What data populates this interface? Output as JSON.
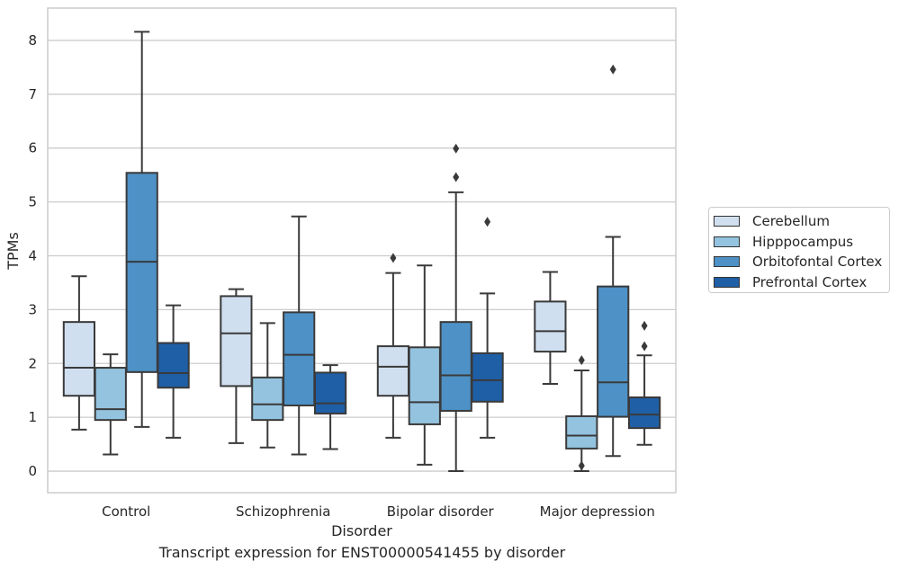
{
  "caption": "Transcript expression for ENST00000541455 by disorder",
  "colors": {
    "Cerebellum": "#d0dfef",
    "Hipppocampus": "#93c3df",
    "Orbitofontal Cortex": "#4d91c6",
    "Prefrontal Cortex": "#1f5fa6"
  },
  "chart_data": {
    "type": "box",
    "xlabel": "Disorder",
    "ylabel": "TPMs",
    "ylim": [
      -0.4,
      8.6
    ],
    "yticks": [
      0,
      1,
      2,
      3,
      4,
      5,
      6,
      7,
      8
    ],
    "categories": [
      "Control",
      "Schizophrenia",
      "Bipolar disorder",
      "Major depression"
    ],
    "grid": "horizontal",
    "legend_position": "right",
    "series": [
      {
        "name": "Cerebellum",
        "boxes": [
          {
            "whislo": 0.77,
            "q1": 1.4,
            "med": 1.92,
            "q3": 2.77,
            "whishi": 3.62,
            "fliers": []
          },
          {
            "whislo": 0.52,
            "q1": 1.58,
            "med": 2.56,
            "q3": 3.25,
            "whishi": 3.38,
            "fliers": []
          },
          {
            "whislo": 0.62,
            "q1": 1.4,
            "med": 1.94,
            "q3": 2.32,
            "whishi": 3.68,
            "fliers": [
              3.96
            ]
          },
          {
            "whislo": 1.62,
            "q1": 2.22,
            "med": 2.6,
            "q3": 3.15,
            "whishi": 3.7,
            "fliers": []
          }
        ]
      },
      {
        "name": "Hipppocampus",
        "boxes": [
          {
            "whislo": 0.31,
            "q1": 0.95,
            "med": 1.15,
            "q3": 1.92,
            "whishi": 2.17,
            "fliers": []
          },
          {
            "whislo": 0.44,
            "q1": 0.95,
            "med": 1.24,
            "q3": 1.74,
            "whishi": 2.75,
            "fliers": []
          },
          {
            "whislo": 0.12,
            "q1": 0.87,
            "med": 1.28,
            "q3": 2.3,
            "whishi": 3.82,
            "fliers": []
          },
          {
            "whislo": 0.0,
            "q1": 0.42,
            "med": 0.66,
            "q3": 1.02,
            "whishi": 1.87,
            "fliers": [
              2.06,
              0.1
            ]
          }
        ]
      },
      {
        "name": "Orbitofontal Cortex",
        "boxes": [
          {
            "whislo": 0.82,
            "q1": 1.84,
            "med": 3.89,
            "q3": 5.54,
            "whishi": 8.16,
            "fliers": []
          },
          {
            "whislo": 0.31,
            "q1": 1.22,
            "med": 2.16,
            "q3": 2.95,
            "whishi": 4.73,
            "fliers": []
          },
          {
            "whislo": 0.0,
            "q1": 1.12,
            "med": 1.78,
            "q3": 2.77,
            "whishi": 5.18,
            "fliers": [
              5.46,
              5.99
            ]
          },
          {
            "whislo": 0.28,
            "q1": 1.01,
            "med": 1.65,
            "q3": 3.43,
            "whishi": 4.35,
            "fliers": [
              7.46
            ]
          }
        ]
      },
      {
        "name": "Prefrontal Cortex",
        "boxes": [
          {
            "whislo": 0.62,
            "q1": 1.55,
            "med": 1.82,
            "q3": 2.38,
            "whishi": 3.08,
            "fliers": []
          },
          {
            "whislo": 0.41,
            "q1": 1.07,
            "med": 1.26,
            "q3": 1.83,
            "whishi": 1.97,
            "fliers": []
          },
          {
            "whislo": 0.62,
            "q1": 1.29,
            "med": 1.69,
            "q3": 2.19,
            "whishi": 3.3,
            "fliers": [
              4.63
            ]
          },
          {
            "whislo": 0.49,
            "q1": 0.8,
            "med": 1.05,
            "q3": 1.37,
            "whishi": 2.15,
            "fliers": [
              2.32,
              2.7
            ]
          }
        ]
      }
    ]
  }
}
